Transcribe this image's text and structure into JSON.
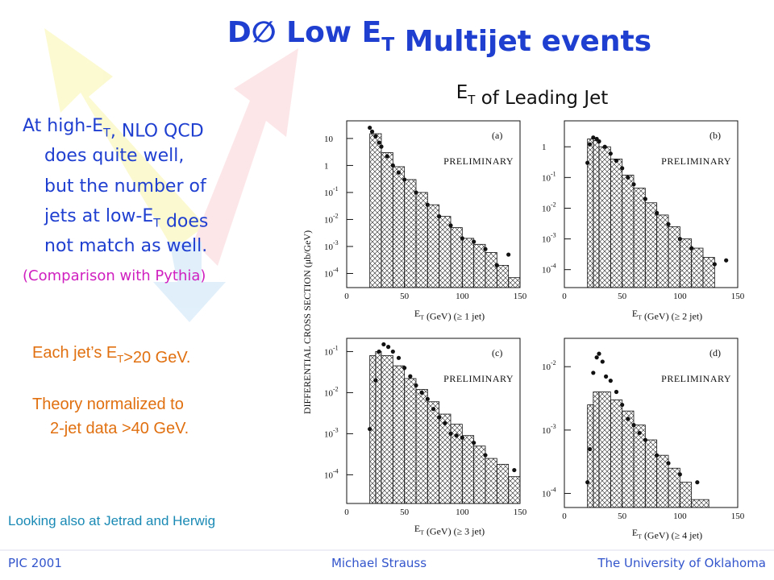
{
  "slide": {
    "title": [
      "D∅ Low E",
      {
        "sub": "T"
      },
      " Multijet events"
    ],
    "subtitle": [
      "E",
      {
        "sub": "T"
      },
      " of Leading Jet"
    ],
    "left_text": [
      [
        "At high-E",
        {
          "sub": "T"
        },
        ", NLO QCD"
      ],
      [
        "does quite well,"
      ],
      [
        "but the number of"
      ],
      [
        "jets at low-E",
        {
          "sub": "T"
        },
        " does"
      ],
      [
        "not match as well."
      ]
    ],
    "comparison": "(Comparison with Pythia)",
    "notes": [
      [
        "Each jet’s E",
        {
          "sub": "T"
        },
        ">20 GeV."
      ],
      [
        "Theory normalized to"
      ],
      [
        "2-jet data >40 GeV."
      ]
    ],
    "also": "Looking also at Jetrad and Herwig",
    "y_axis_label": "DIFFERENTIAL   CROSS   SECTION  (μb/GeV)",
    "footer": {
      "left": "PIC 2001",
      "center": "Michael Strauss",
      "right": "The University of Oklahoma"
    }
  },
  "chart_data": [
    {
      "type": "histogram",
      "panel": "(a)",
      "annotation": "PRELIMINARY",
      "xlabel": [
        "E",
        {
          "sub": "T"
        },
        " (GeV)  (≥ 1 jet)"
      ],
      "xlim": [
        0,
        150
      ],
      "xticks": [
        0,
        50,
        100,
        150
      ],
      "log_y": true,
      "ylim": [
        3e-05,
        45
      ],
      "yticks": [
        10,
        1,
        {
          "value": 0.1,
          "label": "10",
          "exponent": "-1"
        },
        {
          "value": 0.01,
          "label": "10",
          "exponent": "-2"
        },
        {
          "value": 0.001,
          "label": "10",
          "exponent": "-3"
        },
        {
          "value": 0.0001,
          "label": "10",
          "exponent": "-4"
        }
      ],
      "bins": [
        20,
        30,
        40,
        50,
        60,
        70,
        80,
        90,
        100,
        110,
        120,
        130,
        140,
        150
      ],
      "counts": [
        15,
        3,
        0.9,
        0.3,
        0.1,
        0.035,
        0.013,
        0.005,
        0.002,
        0.0012,
        0.0006,
        0.0002,
        7e-05
      ],
      "points": {
        "x": [
          20,
          22,
          25,
          28,
          30,
          35,
          40,
          45,
          50,
          60,
          70,
          80,
          90,
          100,
          110,
          120,
          130,
          140
        ],
        "y": [
          25,
          18,
          12,
          7,
          5,
          2.2,
          1,
          0.55,
          0.3,
          0.1,
          0.035,
          0.013,
          0.006,
          0.002,
          0.0015,
          0.0008,
          0.0002,
          0.0005
        ]
      }
    },
    {
      "type": "histogram",
      "panel": "(b)",
      "annotation": "PRELIMINARY",
      "xlabel": [
        "E",
        {
          "sub": "T"
        },
        " (GeV)  (≥ 2 jet)"
      ],
      "xlim": [
        0,
        150
      ],
      "xticks": [
        0,
        50,
        100,
        150
      ],
      "log_y": true,
      "ylim": [
        2.6e-05,
        7
      ],
      "yticks": [
        1,
        {
          "value": 0.1,
          "label": "10",
          "exponent": "-1"
        },
        {
          "value": 0.01,
          "label": "10",
          "exponent": "-2"
        },
        {
          "value": 0.001,
          "label": "10",
          "exponent": "-3"
        },
        {
          "value": 0.0001,
          "label": "10",
          "exponent": "-4"
        }
      ],
      "bins": [
        20,
        25,
        30,
        40,
        50,
        60,
        70,
        80,
        90,
        100,
        110,
        120,
        130
      ],
      "counts": [
        1.8,
        1.6,
        1,
        0.4,
        0.12,
        0.045,
        0.015,
        0.006,
        0.0025,
        0.001,
        0.0005,
        0.00025
      ],
      "points": {
        "x": [
          20,
          22,
          25,
          28,
          30,
          35,
          40,
          45,
          50,
          55,
          60,
          70,
          80,
          90,
          100,
          110,
          130,
          140
        ],
        "y": [
          0.3,
          1.2,
          2,
          1.8,
          1.5,
          1,
          0.6,
          0.35,
          0.2,
          0.1,
          0.06,
          0.02,
          0.007,
          0.003,
          0.001,
          0.0005,
          0.00015,
          0.0002
        ]
      }
    },
    {
      "type": "histogram",
      "panel": "(c)",
      "annotation": "PRELIMINARY",
      "xlabel": [
        "E",
        {
          "sub": "T"
        },
        " (GeV)  (≥ 3 jet)"
      ],
      "xlim": [
        0,
        150
      ],
      "xticks": [
        0,
        50,
        100,
        150
      ],
      "log_y": true,
      "ylim": [
        2e-05,
        0.21
      ],
      "yticks": [
        {
          "value": 0.1,
          "label": "10",
          "exponent": "-1"
        },
        {
          "value": 0.01,
          "label": "10",
          "exponent": "-2"
        },
        {
          "value": 0.001,
          "label": "10",
          "exponent": "-3"
        },
        {
          "value": 0.0001,
          "label": "10",
          "exponent": "-4"
        }
      ],
      "bins": [
        20,
        25,
        30,
        40,
        50,
        60,
        70,
        80,
        90,
        100,
        110,
        120,
        130,
        140,
        150
      ],
      "counts": [
        0.08,
        0.1,
        0.08,
        0.045,
        0.022,
        0.012,
        0.006,
        0.003,
        0.0017,
        0.0009,
        0.0005,
        0.00025,
        0.00018,
        9e-05
      ],
      "points": {
        "x": [
          20,
          25,
          28,
          32,
          36,
          40,
          45,
          50,
          55,
          60,
          65,
          70,
          75,
          80,
          85,
          90,
          95,
          100,
          110,
          120,
          145
        ],
        "y": [
          0.0013,
          0.02,
          0.1,
          0.15,
          0.13,
          0.1,
          0.07,
          0.04,
          0.025,
          0.015,
          0.01,
          0.007,
          0.004,
          0.0025,
          0.0018,
          0.001,
          0.0009,
          0.0008,
          0.0006,
          0.0003,
          0.00013
        ]
      }
    },
    {
      "type": "histogram",
      "panel": "(d)",
      "annotation": "PRELIMINARY",
      "xlabel": [
        "E",
        {
          "sub": "T"
        },
        " (GeV)  (≥ 4 jet)"
      ],
      "xlim": [
        0,
        150
      ],
      "xticks": [
        0,
        50,
        100,
        150
      ],
      "log_y": true,
      "ylim": [
        6e-05,
        0.028
      ],
      "yticks": [
        {
          "value": 0.01,
          "label": "10",
          "exponent": "-2"
        },
        {
          "value": 0.001,
          "label": "10",
          "exponent": "-3"
        },
        {
          "value": 0.0001,
          "label": "10",
          "exponent": "-4"
        }
      ],
      "bins": [
        20,
        25,
        30,
        40,
        50,
        60,
        70,
        80,
        90,
        100,
        110,
        125
      ],
      "counts": [
        0.0025,
        0.004,
        0.004,
        0.003,
        0.002,
        0.0012,
        0.0007,
        0.0004,
        0.00025,
        0.00015,
        8e-05
      ],
      "points": {
        "x": [
          20,
          22,
          25,
          28,
          30,
          33,
          36,
          40,
          45,
          50,
          55,
          60,
          65,
          70,
          80,
          90,
          100,
          115
        ],
        "y": [
          0.00015,
          0.0005,
          0.008,
          0.014,
          0.016,
          0.012,
          0.007,
          0.006,
          0.004,
          0.0025,
          0.0015,
          0.0012,
          0.0009,
          0.0007,
          0.0004,
          0.0003,
          0.0002,
          0.00015
        ]
      }
    }
  ]
}
